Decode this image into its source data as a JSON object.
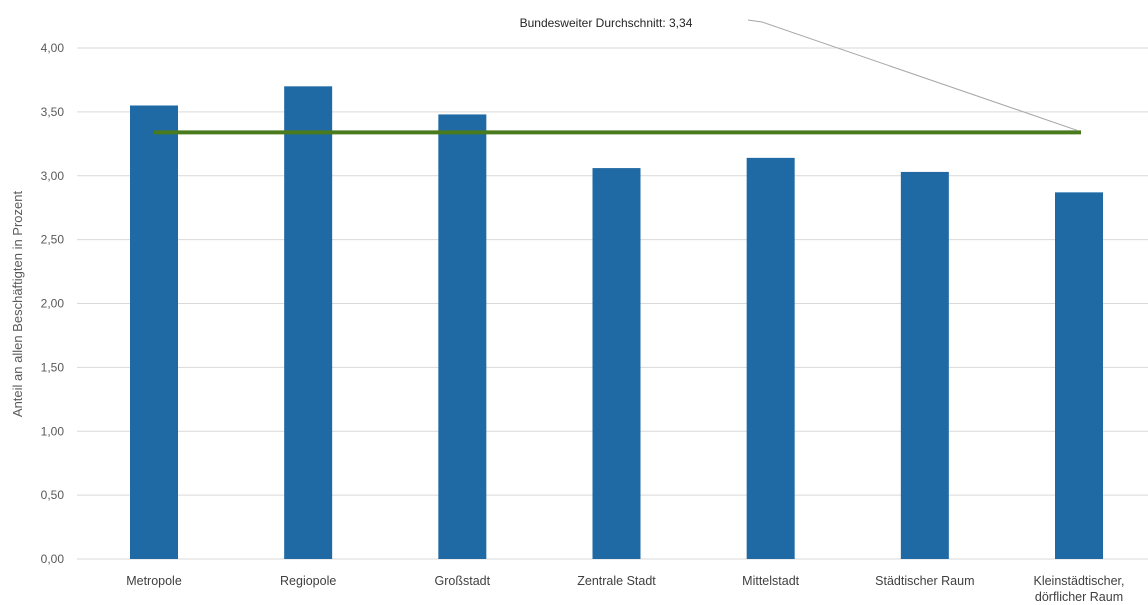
{
  "chart_data": {
    "type": "bar",
    "categories": [
      [
        "Metropole"
      ],
      [
        "Regiopole"
      ],
      [
        "Großstadt"
      ],
      [
        "Zentrale Stadt"
      ],
      [
        "Mittelstadt"
      ],
      [
        "Städtischer Raum"
      ],
      [
        "Kleinstädtischer,",
        "dörflicher Raum"
      ]
    ],
    "values": [
      3.55,
      3.7,
      3.48,
      3.06,
      3.14,
      3.03,
      2.87
    ],
    "ylabel": "Anteil an allen Beschäftigten in Prozent",
    "xlabel": "",
    "title": "",
    "ylim": [
      0,
      4
    ],
    "yticks": [
      0,
      0.5,
      1.0,
      1.5,
      2.0,
      2.5,
      3.0,
      3.5,
      4.0
    ],
    "ytick_labels": [
      "0,00",
      "0,50",
      "1,00",
      "1,50",
      "2,00",
      "2,50",
      "3,00",
      "3,50",
      "4,00"
    ],
    "grid": true,
    "legend": "none",
    "reference_line": {
      "value": 3.34,
      "label": "Bundesweiter Durchschnitt: 3,34",
      "color": "#4a7a1e"
    },
    "bar_color": "#1f6aa5",
    "grid_color": "#d9d9d9"
  }
}
